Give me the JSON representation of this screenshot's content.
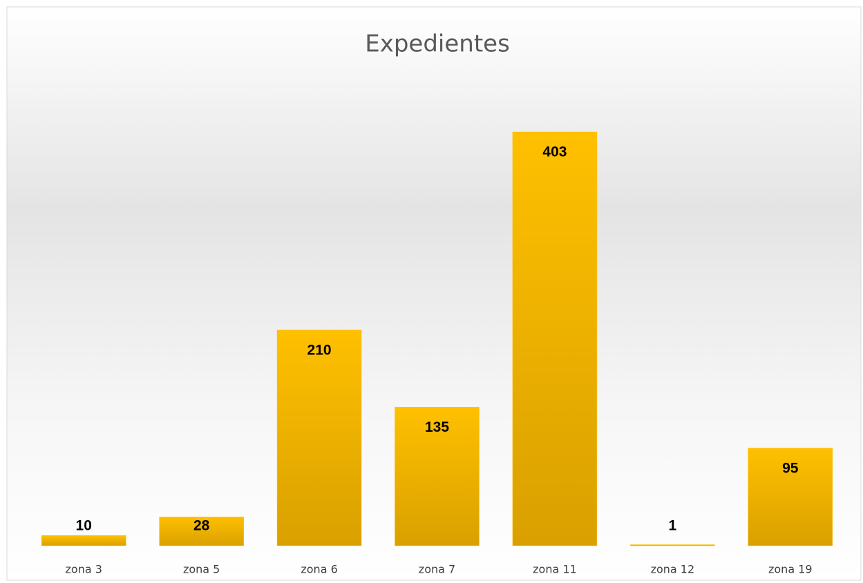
{
  "chart_data": {
    "type": "bar",
    "title": "Expedientes",
    "categories": [
      "zona 3",
      "zona 5",
      "zona 6",
      "zona 7",
      "zona 11",
      "zona 12",
      "zona 19"
    ],
    "values": [
      10,
      28,
      210,
      135,
      403,
      1,
      95
    ],
    "color": "#ffc000"
  }
}
